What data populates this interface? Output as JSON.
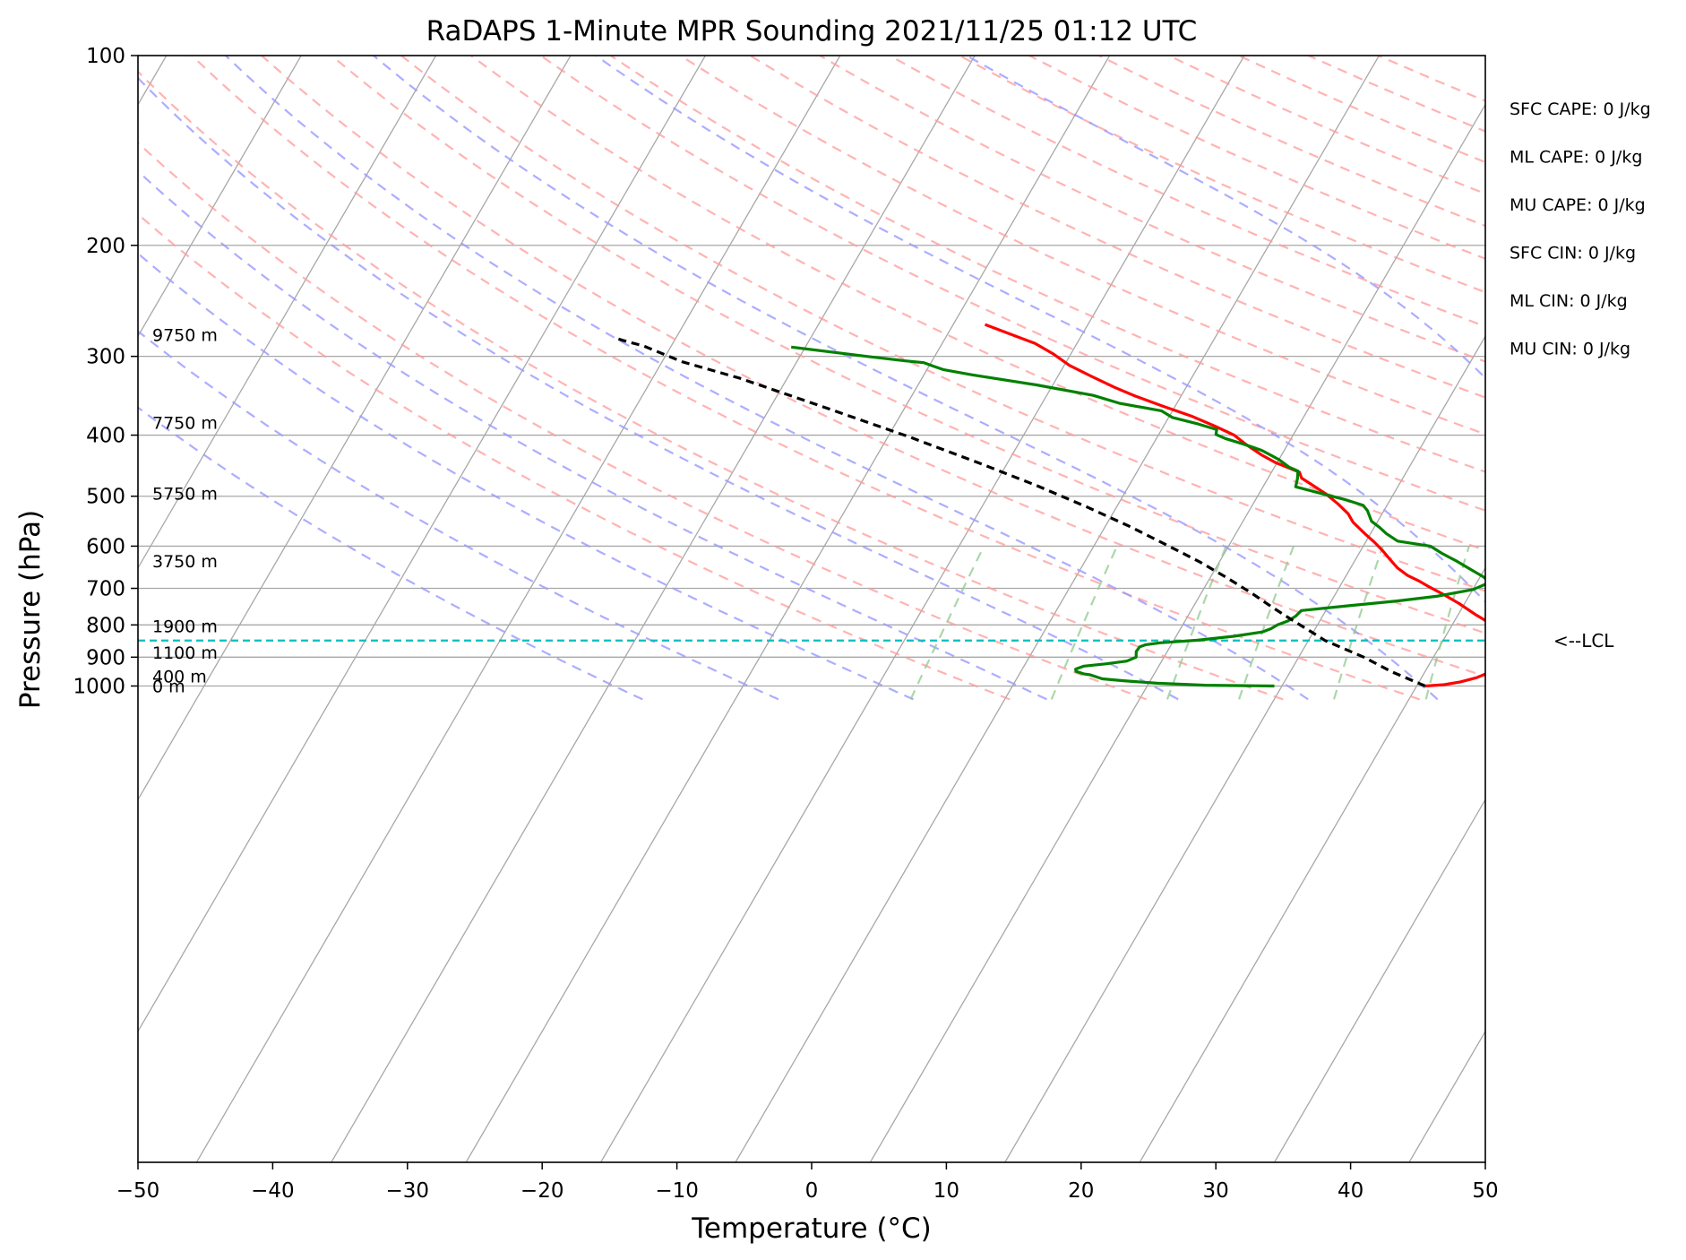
{
  "chart_data": {
    "type": "line",
    "title": "RaDAPS 1-Minute MPR Sounding 2021/11/25 01:12 UTC",
    "xlabel": "Temperature (°C)",
    "ylabel": "Pressure (hPa)",
    "xlim": [
      -50,
      50
    ],
    "ylim": [
      1050,
      100
    ],
    "y_scale": "log",
    "skew": "skew-T log-p",
    "x_ticks": [
      "−50",
      "−40",
      "−30",
      "−20",
      "−10",
      "0",
      "10",
      "20",
      "30",
      "40",
      "50"
    ],
    "y_ticks": [
      {
        "p": 100,
        "label": "100"
      },
      {
        "p": 200,
        "label": "200"
      },
      {
        "p": 300,
        "label": "300"
      },
      {
        "p": 400,
        "label": "400"
      },
      {
        "p": 500,
        "label": "500"
      },
      {
        "p": 600,
        "label": "600"
      },
      {
        "p": 700,
        "label": "700"
      },
      {
        "p": 800,
        "label": "800"
      },
      {
        "p": 900,
        "label": "900"
      },
      {
        "p": 1000,
        "label": "1000"
      }
    ],
    "grid": true,
    "colors": {
      "temperature": "#ff0000",
      "dewpoint": "#008000",
      "parcel": "#000000",
      "lcl": "#00bfbf",
      "dry_adiabats": "#ff9999",
      "moist_adiabats": "#9999ff",
      "mixing_ratio": "#8fc98f",
      "isotherms": "#999999"
    },
    "series": [
      {
        "key": "temperature",
        "points": [
          [
            10.2,
            1000
          ],
          [
            11.5,
            995
          ],
          [
            12.5,
            985
          ],
          [
            13.4,
            970
          ],
          [
            14.0,
            950
          ],
          [
            14.0,
            940
          ],
          [
            14.5,
            925
          ],
          [
            14.8,
            910
          ],
          [
            14.3,
            895
          ],
          [
            13.6,
            880
          ],
          [
            13.2,
            872
          ],
          [
            13.2,
            865
          ],
          [
            12.9,
            858
          ],
          [
            12.3,
            845
          ],
          [
            12.1,
            830
          ],
          [
            11.3,
            815
          ],
          [
            10.0,
            790
          ],
          [
            8.6,
            770
          ],
          [
            6.6,
            740
          ],
          [
            4.7,
            715
          ],
          [
            3.2,
            697
          ],
          [
            2.0,
            682
          ],
          [
            0.7,
            668
          ],
          [
            -0.6,
            650
          ],
          [
            -1.8,
            630
          ],
          [
            -3.0,
            610
          ],
          [
            -4.2,
            592
          ],
          [
            -5.6,
            573
          ],
          [
            -7.3,
            550
          ],
          [
            -8.3,
            533
          ],
          [
            -9.8,
            514
          ],
          [
            -11.5,
            495
          ],
          [
            -13.3,
            478
          ],
          [
            -14.4,
            468
          ],
          [
            -15.0,
            458
          ],
          [
            -17.5,
            442
          ],
          [
            -19.1,
            430
          ],
          [
            -21.0,
            414
          ],
          [
            -22.6,
            400
          ],
          [
            -24.7,
            387
          ],
          [
            -27.2,
            373
          ],
          [
            -30.0,
            360
          ],
          [
            -32.8,
            347
          ],
          [
            -35.0,
            336
          ],
          [
            -37.5,
            323
          ],
          [
            -40.0,
            310
          ],
          [
            -42.1,
            297
          ],
          [
            -44.2,
            286
          ],
          [
            -46.6,
            277
          ],
          [
            -49.3,
            267
          ]
        ]
      },
      {
        "key": "dewpoint",
        "points": [
          [
            -1.0,
            1000
          ],
          [
            -6.2,
            997
          ],
          [
            -9.9,
            990
          ],
          [
            -12.6,
            981
          ],
          [
            -14.3,
            974
          ],
          [
            -15.5,
            960
          ],
          [
            -16.0,
            957
          ],
          [
            -16.8,
            948
          ],
          [
            -17.0,
            940
          ],
          [
            -16.6,
            930
          ],
          [
            -15.1,
            922
          ],
          [
            -13.8,
            913
          ],
          [
            -13.4,
            900
          ],
          [
            -13.8,
            882
          ],
          [
            -13.9,
            867
          ],
          [
            -13.6,
            860
          ],
          [
            -12.7,
            854
          ],
          [
            -10.1,
            846
          ],
          [
            -7.7,
            834
          ],
          [
            -5.9,
            821
          ],
          [
            -5.5,
            811
          ],
          [
            -5.3,
            800
          ],
          [
            -4.8,
            788
          ],
          [
            -4.6,
            775
          ],
          [
            -4.6,
            759
          ],
          [
            -1.5,
            746
          ],
          [
            1.8,
            733
          ],
          [
            4.5,
            720
          ],
          [
            6.6,
            703
          ],
          [
            7.3,
            685
          ],
          [
            6.4,
            671
          ],
          [
            4.9,
            653
          ],
          [
            3.2,
            633
          ],
          [
            1.6,
            616
          ],
          [
            0.2,
            600
          ],
          [
            -2.6,
            589
          ],
          [
            -4.0,
            573
          ],
          [
            -4.9,
            561
          ],
          [
            -6.0,
            548
          ],
          [
            -7.1,
            527
          ],
          [
            -7.8,
            517
          ],
          [
            -9.6,
            506
          ],
          [
            -12.2,
            493
          ],
          [
            -14.2,
            483
          ],
          [
            -14.7,
            468
          ],
          [
            -15.2,
            456
          ],
          [
            -16.1,
            450
          ],
          [
            -17.5,
            437
          ],
          [
            -19.4,
            423
          ],
          [
            -21.3,
            413
          ],
          [
            -23.0,
            405
          ],
          [
            -24.0,
            399
          ],
          [
            -24.3,
            392
          ],
          [
            -26.1,
            384
          ],
          [
            -28.5,
            375
          ],
          [
            -29.8,
            366
          ],
          [
            -33.5,
            356
          ],
          [
            -36.0,
            346
          ],
          [
            -41.0,
            333
          ],
          [
            -46.5,
            321
          ],
          [
            -49.0,
            315
          ],
          [
            -50.0,
            311
          ],
          [
            -51.0,
            307
          ],
          [
            -52.5,
            305
          ],
          [
            -55.7,
            300
          ],
          [
            -62.0,
            290
          ]
        ]
      },
      {
        "key": "parcel",
        "points": [
          [
            10.2,
            1000
          ],
          [
            6.7,
            950
          ],
          [
            3.5,
            900
          ],
          [
            -0.6,
            847
          ],
          [
            -2.3,
            820
          ],
          [
            -4.5,
            787
          ],
          [
            -7.0,
            750
          ],
          [
            -9.6,
            712
          ],
          [
            -12.5,
            674
          ],
          [
            -15.7,
            636
          ],
          [
            -19.5,
            597
          ],
          [
            -23.5,
            559
          ],
          [
            -28.2,
            520
          ],
          [
            -33.5,
            481
          ],
          [
            -39.6,
            442
          ],
          [
            -46.5,
            403
          ],
          [
            -54.5,
            364
          ],
          [
            -63.5,
            325
          ],
          [
            -69.0,
            306
          ],
          [
            -73.0,
            289
          ],
          [
            -75.0,
            283
          ],
          [
            -75.9,
            280
          ]
        ]
      }
    ],
    "lcl": {
      "p": 847,
      "label": "<--LCL"
    },
    "height_labels": [
      {
        "p": 1000,
        "label": "0 m"
      },
      {
        "p": 965,
        "label": "400 m"
      },
      {
        "p": 885,
        "label": "1100 m"
      },
      {
        "p": 803,
        "label": "1900 m"
      },
      {
        "p": 633,
        "label": "3750 m"
      },
      {
        "p": 495,
        "label": "5750 m"
      },
      {
        "p": 382,
        "label": "7750 m"
      },
      {
        "p": 277,
        "label": "9750 m"
      }
    ],
    "indices": [
      {
        "label": "SFC CAPE: 0 J/kg"
      },
      {
        "label": "ML CAPE: 0 J/kg"
      },
      {
        "label": "MU CAPE: 0 J/kg"
      },
      {
        "label": "SFC CIN: 0 J/kg"
      },
      {
        "label": "ML CIN: 0 J/kg"
      },
      {
        "label": "MU CIN: 0 J/kg"
      }
    ],
    "dry_adiabats_K": [
      250,
      260,
      270,
      280,
      290,
      300,
      310,
      320,
      330,
      340,
      350,
      360,
      370,
      380,
      390,
      400,
      410,
      420,
      430,
      440,
      450
    ],
    "moist_adiabats_C": [
      -50,
      -40,
      -30,
      -20,
      -10,
      0,
      10,
      20,
      30,
      40,
      50
    ],
    "mixing_ratio_gkg": [
      0.4,
      1,
      2,
      3,
      5,
      8,
      12,
      16,
      20,
      28,
      36
    ]
  }
}
